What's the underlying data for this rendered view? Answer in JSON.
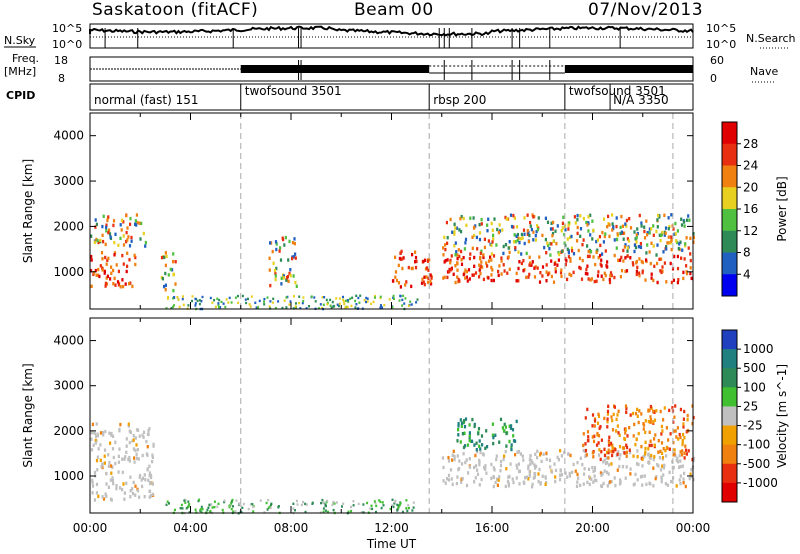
{
  "header": {
    "radar": "Saskatoon (fitACF)",
    "beam": "Beam 00",
    "date": "07/Nov/2013"
  },
  "strip_labels": {
    "nsky": "N.Sky",
    "nsky_hi": "10^5",
    "nsky_lo": "10^0",
    "nsearch": "N.Search",
    "freq_top": "Freq.",
    "freq_unit": "[MHz]",
    "freq_hi": "18",
    "freq_lo": "8",
    "nave_hi": "60",
    "nave_lo": "0",
    "nave": "Nave",
    "cpid": "CPID"
  },
  "cpid_segments": [
    {
      "label": "normal (fast) 151",
      "start_hour": 0.0
    },
    {
      "label": "twofsound 3501",
      "start_hour": 6.0
    },
    {
      "label": "rbsp 200",
      "start_hour": 13.5
    },
    {
      "label": "twofsound 3501",
      "start_hour": 18.9
    },
    {
      "label": "N/A 3350",
      "start_hour": 20.7
    }
  ],
  "chart_data": [
    {
      "type": "heatmap",
      "panel": "power",
      "ylabel": "Slant Range [km]",
      "xlim": [
        0,
        24
      ],
      "ylim": [
        180,
        4500
      ],
      "yticks": [
        1000,
        2000,
        3000,
        4000
      ],
      "colorbar": {
        "label": "Power [dB]",
        "ticks": [
          "4",
          "8",
          "12",
          "16",
          "20",
          "24",
          "28"
        ],
        "colors": [
          "#0000f0",
          "#2060c0",
          "#2e8b57",
          "#50c040",
          "#e8d020",
          "#f08010",
          "#e83010",
          "#e00000"
        ]
      },
      "echo_regions": [
        {
          "t": [
            0.0,
            1.8
          ],
          "r": [
            700,
            1500
          ],
          "level": "high"
        },
        {
          "t": [
            0.0,
            2.2
          ],
          "r": [
            1600,
            2300
          ],
          "level": "mixed"
        },
        {
          "t": [
            2.8,
            3.4
          ],
          "r": [
            600,
            1500
          ],
          "level": "mixed"
        },
        {
          "t": [
            7.1,
            8.2
          ],
          "r": [
            700,
            1800
          ],
          "level": "mixed"
        },
        {
          "t": [
            12.0,
            13.6
          ],
          "r": [
            700,
            1500
          ],
          "level": "high"
        },
        {
          "t": [
            14.0,
            24.0
          ],
          "r": [
            800,
            1400
          ],
          "level": "high"
        },
        {
          "t": [
            14.0,
            24.0
          ],
          "r": [
            1400,
            2300
          ],
          "level": "mixed"
        }
      ]
    },
    {
      "type": "heatmap",
      "panel": "velocity",
      "ylabel": "Slant Range [km]",
      "xlabel": "Time UT",
      "xlim": [
        0,
        24
      ],
      "xticks": [
        "00:00",
        "04:00",
        "08:00",
        "12:00",
        "16:00",
        "20:00",
        "00:00"
      ],
      "ylim": [
        180,
        4500
      ],
      "yticks": [
        1000,
        2000,
        3000,
        4000
      ],
      "colorbar": {
        "label": "Velocity [m s^-1]",
        "ticks": [
          "1000",
          "500",
          "100",
          "25",
          "-25",
          "-100",
          "-500",
          "-1000"
        ],
        "colors": [
          "#2040c0",
          "#208080",
          "#2e8b57",
          "#40c030",
          "#c0c0c0",
          "#f0a000",
          "#f08010",
          "#e83010",
          "#e00000"
        ]
      },
      "echo_regions": [
        {
          "t": [
            0.0,
            2.5
          ],
          "r": [
            500,
            2200
          ],
          "level": "low-velocity (ground scatter)"
        },
        {
          "t": [
            14.0,
            24.0
          ],
          "r": [
            800,
            1600
          ],
          "level": "low-velocity (ground scatter)"
        },
        {
          "t": [
            14.5,
            17.0
          ],
          "r": [
            1600,
            2300
          ],
          "level": "positive"
        },
        {
          "t": [
            19.5,
            24.0
          ],
          "r": [
            1400,
            2600
          ],
          "level": "negative"
        }
      ]
    }
  ]
}
